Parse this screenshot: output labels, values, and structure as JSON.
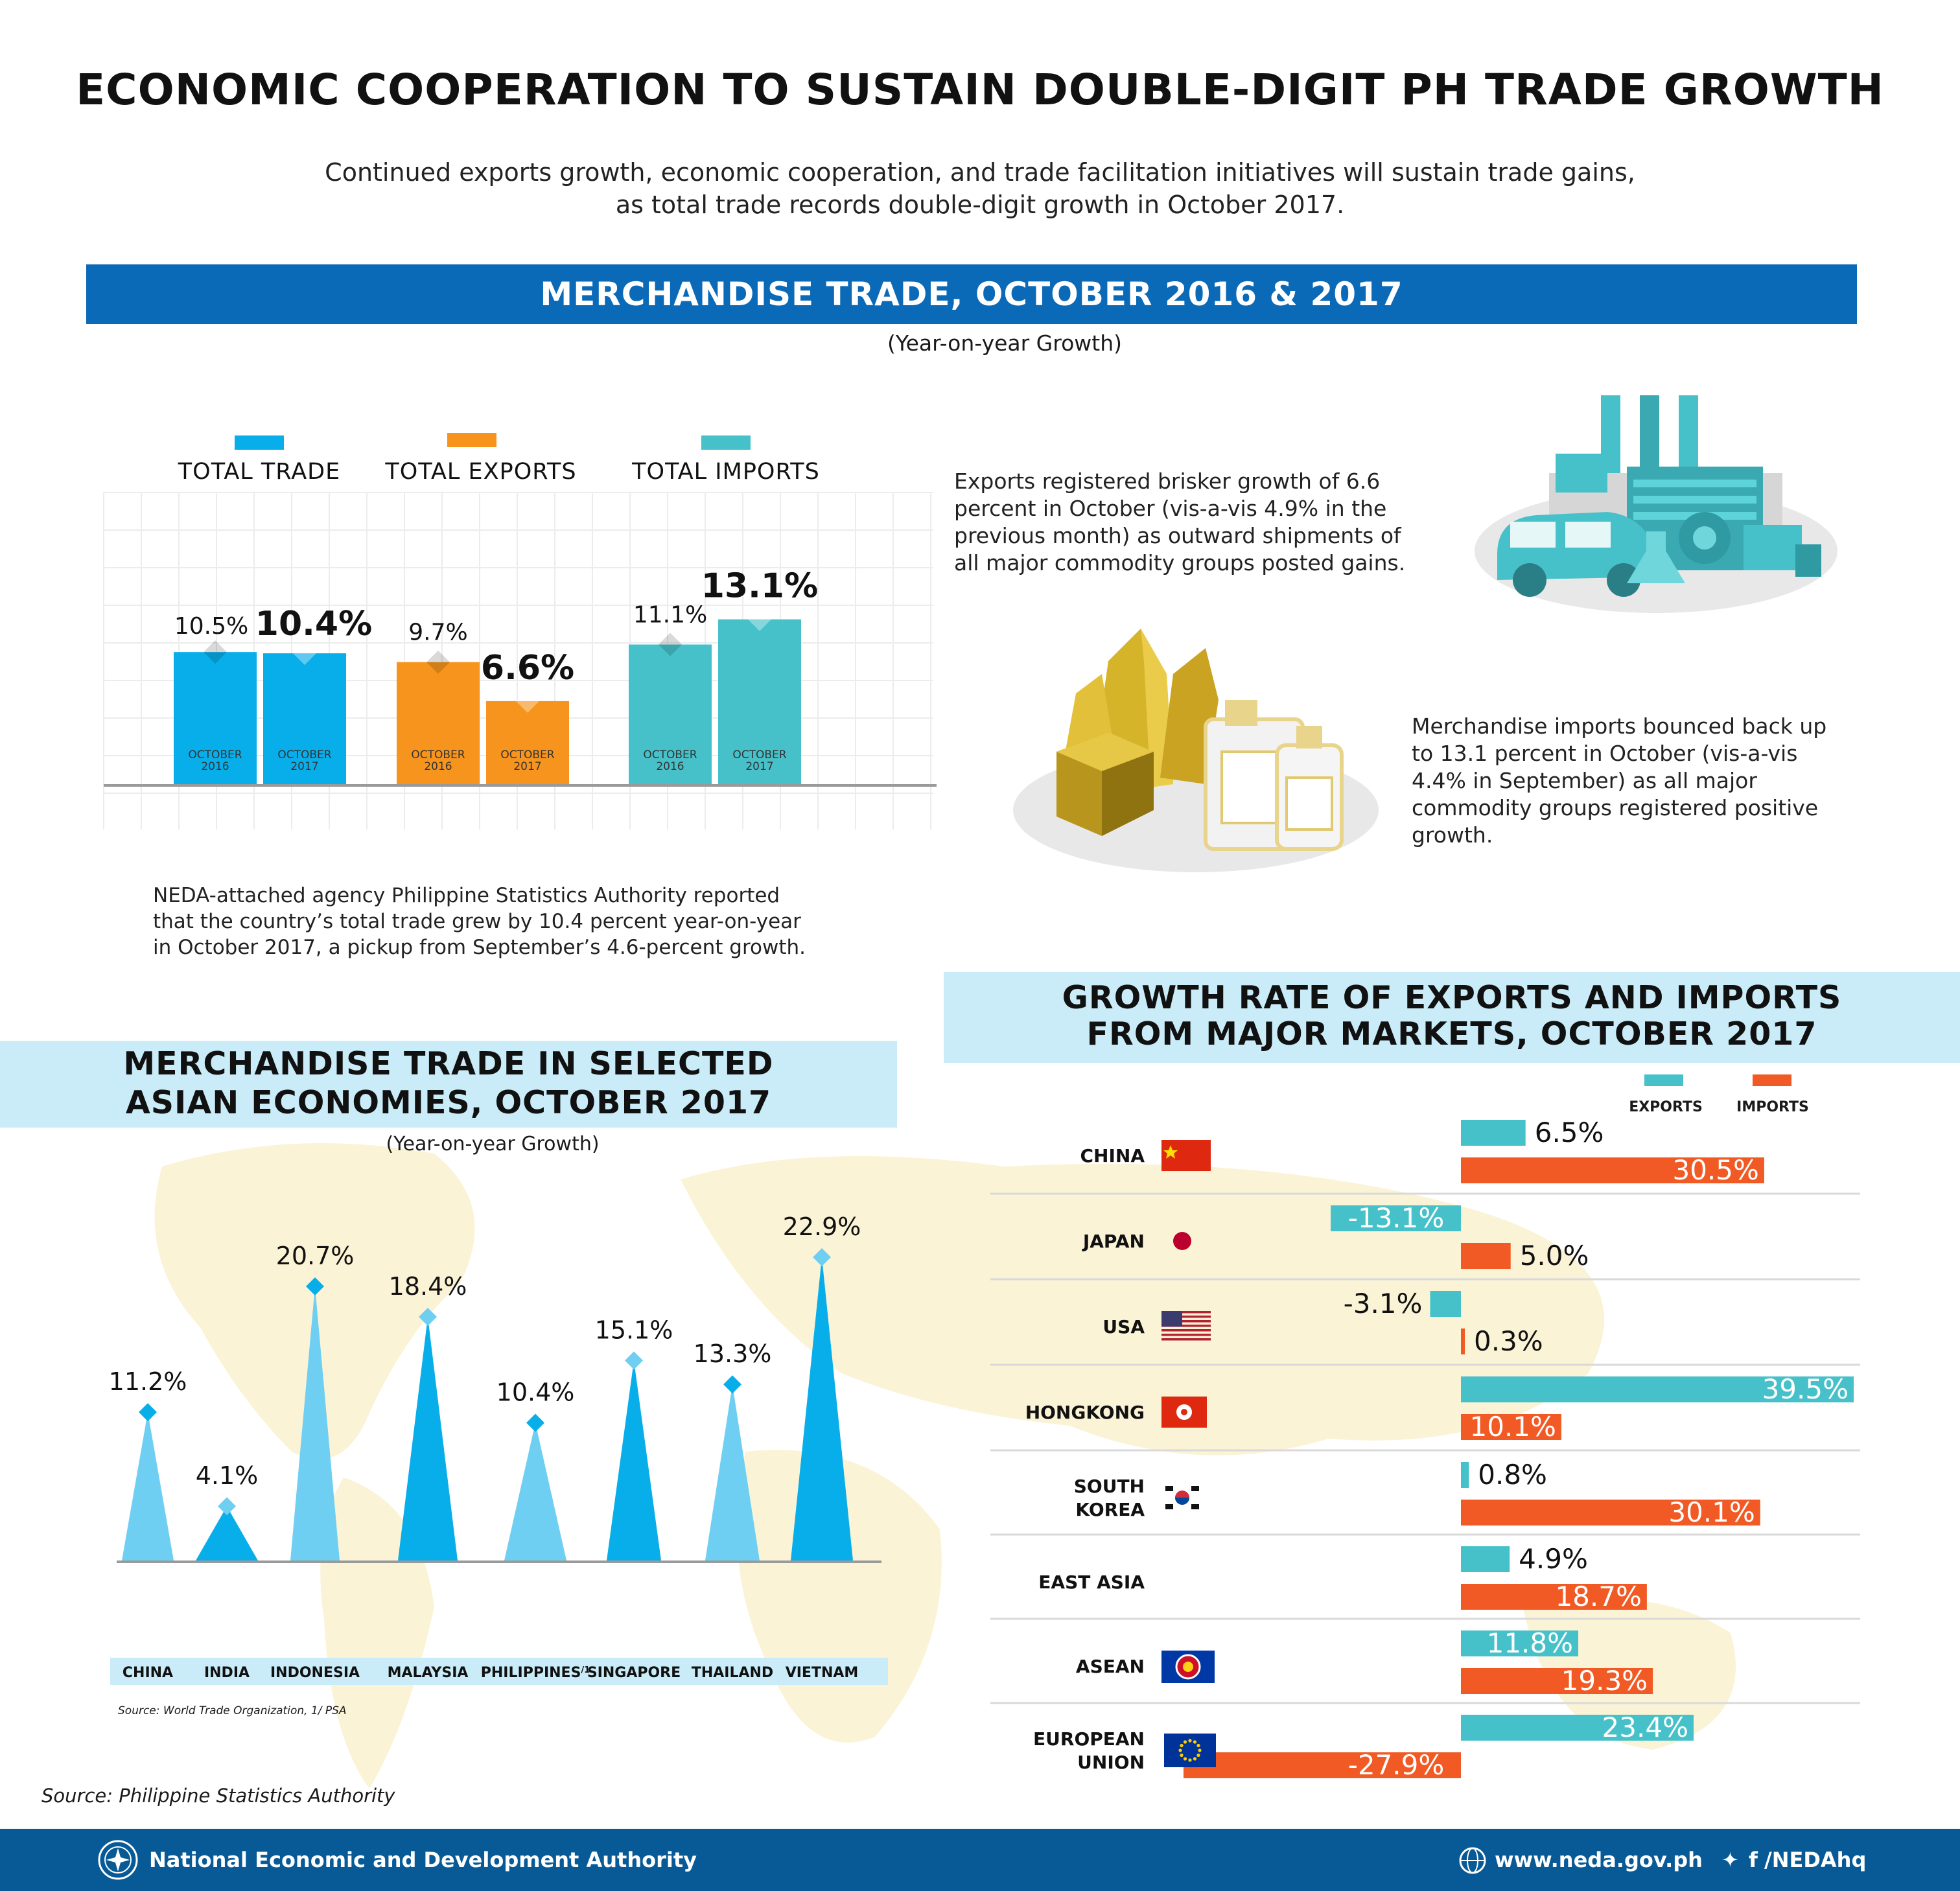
{
  "title": "ECONOMIC COOPERATION TO SUSTAIN DOUBLE-DIGIT PH TRADE GROWTH",
  "subtitle_line1": "Continued exports growth, economic cooperation, and trade facilitation initiatives will sustain trade gains,",
  "subtitle_line2": "as total trade records double-digit growth in October 2017.",
  "colors": {
    "dark_blue": "#0a6ab8",
    "light_blue_banner": "#c9ecf8",
    "total_trade": "#08aeea",
    "total_exports": "#f7941d",
    "total_imports": "#47c1c9",
    "exports_bar": "#47c1c9",
    "imports_bar": "#f15a24",
    "footer": "#075a96"
  },
  "section1": {
    "heading": "MERCHANDISE TRADE, OCTOBER 2016 & 2017",
    "note": "(Year-on-year Growth)",
    "legend": [
      "TOTAL TRADE",
      "TOTAL EXPORTS",
      "TOTAL IMPORTS"
    ],
    "bar_month_line1": "OCTOBER",
    "text_main": [
      "NEDA-attached agency Philippine Statistics Authority reported",
      "that the country’s total trade grew by 10.4 percent year-on-year",
      "in October 2017, a pickup from September’s 4.6-percent growth."
    ],
    "text_exports": [
      "Exports registered brisker growth of 6.6",
      "percent in October (vis-a-vis 4.9% in the",
      "previous month) as outward shipments of",
      "all major commodity groups posted gains."
    ],
    "text_imports": [
      "Merchandise imports bounced back up",
      "to 13.1 percent in October (vis-a-vis",
      "4.4% in September) as all major",
      "commodity groups registered positive",
      "growth."
    ],
    "icon_factory": "factory-industry-icon",
    "icon_goods": "minerals-goods-icon"
  },
  "chart_data": [
    {
      "type": "bar",
      "categories": [
        "TOTAL TRADE",
        "TOTAL EXPORTS",
        "TOTAL IMPORTS"
      ],
      "series": [
        {
          "name": "OCTOBER 2016",
          "values": [
            10.5,
            9.7,
            11.1
          ],
          "labels": [
            "10.5%",
            "9.7%",
            "11.1%"
          ]
        },
        {
          "name": "OCTOBER 2017",
          "values": [
            10.4,
            6.6,
            13.1
          ],
          "labels": [
            "10.4%",
            "6.6%",
            "13.1%"
          ]
        }
      ],
      "ylim": [
        0,
        17
      ],
      "grid": true
    },
    {
      "type": "bar",
      "title": "MERCHANDISE TRADE IN SELECTED ASIAN ECONOMIES, OCTOBER 2017",
      "subtitle": "(Year-on-year Growth)",
      "categories": [
        "CHINA",
        "INDIA",
        "INDONESIA",
        "MALAYSIA",
        "PHILIPPINES",
        "SINGAPORE",
        "THAILAND",
        "VIETNAM"
      ],
      "category_suffix": [
        "",
        "",
        "",
        "",
        "/1",
        "",
        "",
        ""
      ],
      "values": [
        11.2,
        4.1,
        20.7,
        18.4,
        10.4,
        15.1,
        13.3,
        22.9
      ],
      "labels": [
        "11.2%",
        "4.1%",
        "20.7%",
        "18.4%",
        "10.4%",
        "15.1%",
        "13.3%",
        "22.9%"
      ],
      "ylim": [
        0,
        23
      ],
      "source": "Source: World Trade Organization, 1/ PSA"
    },
    {
      "type": "bar",
      "title": "GROWTH RATE OF EXPORTS AND IMPORTS FROM MAJOR MARKETS, OCTOBER 2017",
      "legend": [
        "EXPORTS",
        "IMPORTS"
      ],
      "categories": [
        "CHINA",
        "JAPAN",
        "USA",
        "HONGKONG",
        "SOUTH KOREA",
        "EAST ASIA",
        "ASEAN",
        "EUROPEAN UNION"
      ],
      "category_lines": [
        [
          "CHINA"
        ],
        [
          "JAPAN"
        ],
        [
          "USA"
        ],
        [
          "HONGKONG"
        ],
        [
          "SOUTH",
          "KOREA"
        ],
        [
          "EAST ASIA"
        ],
        [
          "ASEAN"
        ],
        [
          "EUROPEAN",
          "UNION"
        ]
      ],
      "flags": [
        "china-flag-icon",
        "japan-flag-icon",
        "usa-flag-icon",
        "hongkong-flag-icon",
        "south-korea-flag-icon",
        "",
        "asean-flag-icon",
        "eu-flag-icon"
      ],
      "series": [
        {
          "name": "EXPORTS",
          "values": [
            6.5,
            -13.1,
            -3.1,
            39.5,
            0.8,
            4.9,
            11.8,
            23.4
          ],
          "labels": [
            "6.5%",
            "-13.1%",
            "-3.1%",
            "39.5%",
            "0.8%",
            "4.9%",
            "11.8%",
            "23.4%"
          ]
        },
        {
          "name": "IMPORTS",
          "values": [
            30.5,
            5.0,
            0.3,
            10.1,
            30.1,
            18.7,
            19.3,
            -27.9
          ],
          "labels": [
            "30.5%",
            "5.0%",
            "0.3%",
            "10.1%",
            "30.1%",
            "18.7%",
            "19.3%",
            "-27.9%"
          ]
        }
      ]
    }
  ],
  "source_main": "Source: Philippine Statistics Authority",
  "footer": {
    "org": "National Economic and Development Authority",
    "website": "www.neda.gov.ph",
    "social": "/NEDAhq",
    "logo": "neda-seal-icon",
    "globe_icon": "globe-icon",
    "social_icons": [
      "twitter-icon",
      "facebook-icon"
    ]
  }
}
